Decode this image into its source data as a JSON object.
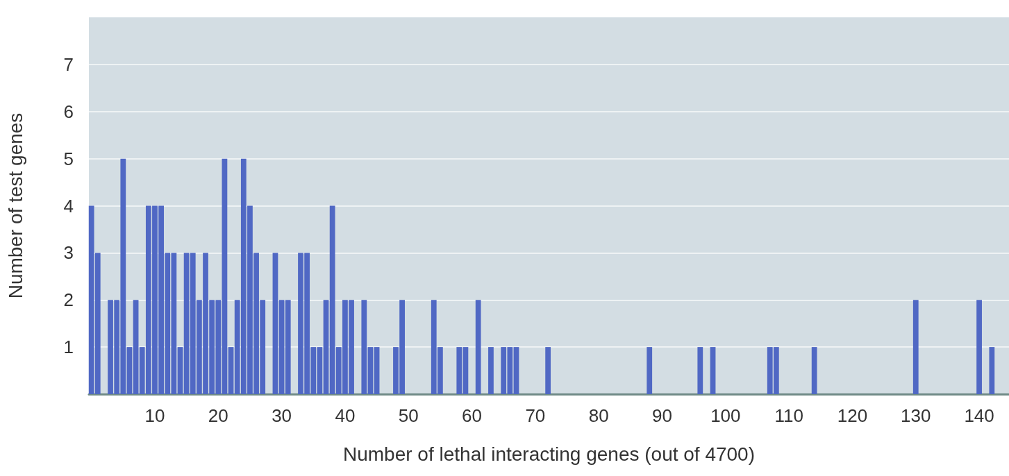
{
  "chart_data": {
    "type": "bar",
    "xlabel": "Number of lethal interacting genes (out of 4700)",
    "ylabel": "Number of test genes",
    "x": [
      0,
      1,
      3,
      4,
      5,
      6,
      7,
      8,
      9,
      10,
      11,
      12,
      13,
      14,
      15,
      16,
      17,
      18,
      19,
      20,
      21,
      22,
      23,
      24,
      25,
      26,
      27,
      29,
      30,
      31,
      33,
      34,
      35,
      36,
      37,
      38,
      39,
      40,
      41,
      43,
      44,
      45,
      48,
      49,
      54,
      55,
      58,
      59,
      61,
      63,
      65,
      66,
      67,
      72,
      88,
      96,
      98,
      107,
      108,
      114,
      130,
      140,
      142
    ],
    "values": [
      4,
      3,
      2,
      2,
      5,
      1,
      2,
      1,
      4,
      4,
      4,
      3,
      3,
      1,
      3,
      3,
      2,
      3,
      2,
      2,
      5,
      1,
      2,
      5,
      4,
      3,
      2,
      3,
      2,
      2,
      3,
      3,
      1,
      1,
      2,
      4,
      1,
      2,
      2,
      2,
      1,
      1,
      1,
      2,
      2,
      1,
      1,
      1,
      2,
      1,
      1,
      1,
      1,
      1,
      1,
      1,
      1,
      1,
      1,
      1,
      2,
      2,
      1
    ],
    "color": "#5068c4",
    "xlim": [
      -0.4,
      144.7
    ],
    "xticks": [
      10,
      20,
      30,
      40,
      50,
      60,
      70,
      80,
      90,
      100,
      110,
      120,
      130,
      140
    ],
    "ylim": [
      0,
      8
    ],
    "yticks": [
      1,
      2,
      3,
      4,
      5,
      6,
      7
    ],
    "grid": "y"
  }
}
